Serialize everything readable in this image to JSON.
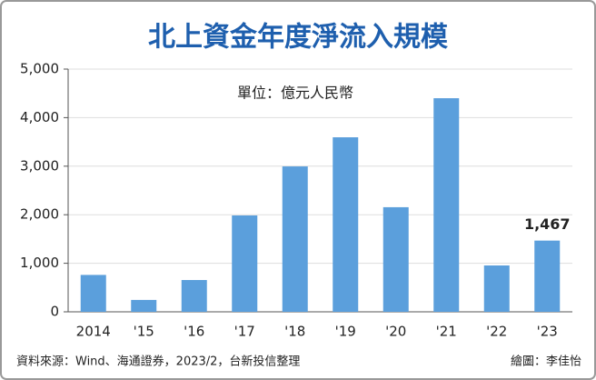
{
  "chart_data": {
    "type": "bar",
    "title": "北上資金年度淨流入規模",
    "subtitle": "單位：億元人民幣",
    "categories": [
      "2014",
      "'15",
      "'16",
      "'17",
      "'18",
      "'19",
      "'20",
      "'21",
      "'22",
      "'23"
    ],
    "values": [
      760,
      245,
      655,
      1985,
      2995,
      3595,
      2155,
      4400,
      955,
      1467
    ],
    "value_labels": [
      null,
      null,
      null,
      null,
      null,
      null,
      null,
      null,
      null,
      "1,467"
    ],
    "color": "#5b9fdc",
    "ylim": [
      0,
      5000
    ],
    "yticks": [
      0,
      {
        "value": 1000,
        "label": "1,000"
      },
      {
        "value": 2000,
        "label": "2,000"
      },
      {
        "value": 3000,
        "label": "3,000"
      },
      {
        "value": 4000,
        "label": "4,000"
      },
      {
        "value": 5000,
        "label": "5,000"
      }
    ],
    "grid": true,
    "source": "資料來源：Wind、海通證券，2023/2，台新投信整理",
    "credit": "繪圖：李佳怡"
  }
}
